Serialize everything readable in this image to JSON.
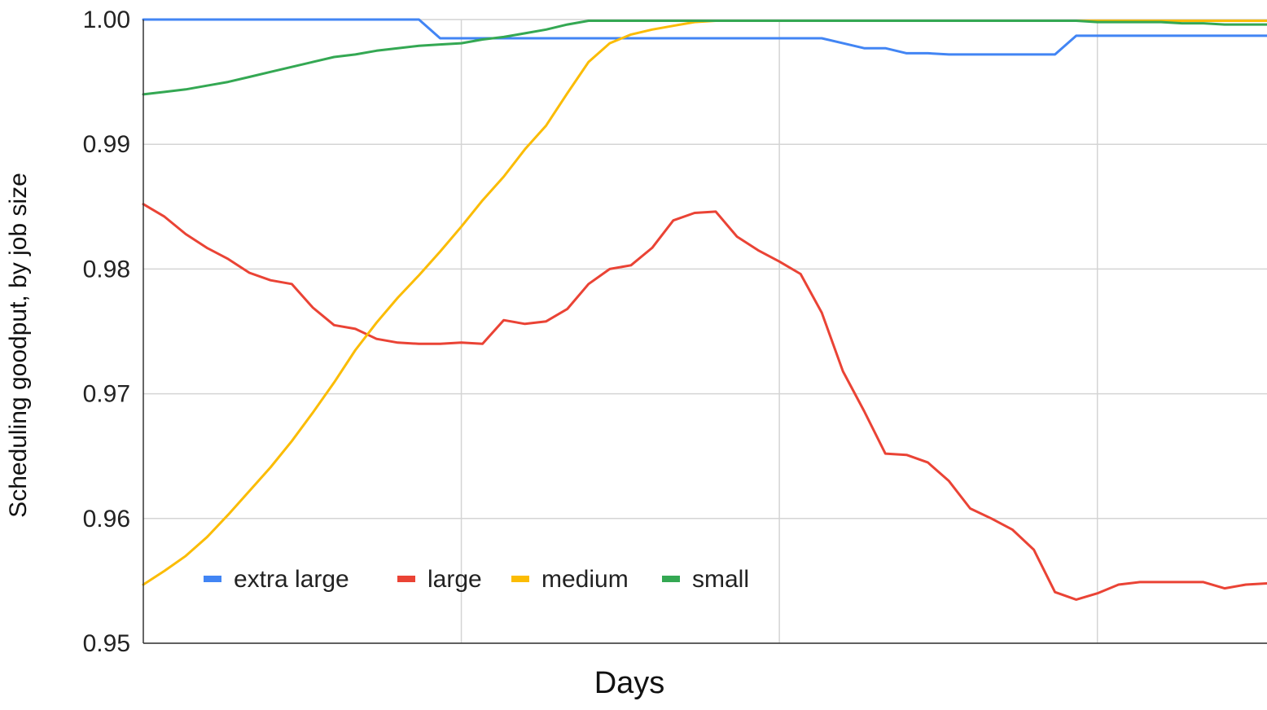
{
  "chart_data": {
    "type": "line",
    "title": "",
    "xlabel": "Days",
    "ylabel": "Scheduling goodput, by job size",
    "ylim": [
      0.95,
      1.0
    ],
    "yticks": [
      "0.95",
      "0.96",
      "0.97",
      "0.98",
      "0.99",
      "1.00"
    ],
    "x": [
      0,
      1,
      2,
      3,
      4,
      5,
      6,
      7,
      8,
      9,
      10,
      11,
      12,
      13,
      14,
      15,
      16,
      17,
      18,
      19,
      20,
      21,
      22,
      23,
      24,
      25,
      26,
      27,
      28,
      29,
      30,
      31,
      32,
      33,
      34,
      35,
      36,
      37,
      38,
      39,
      40,
      41,
      42,
      43,
      44,
      45,
      46,
      47,
      48,
      49,
      50,
      51,
      52,
      53
    ],
    "xlim": [
      0,
      53
    ],
    "x_gridlines": [
      15,
      30,
      45
    ],
    "legend_position": "bottom-left",
    "grid": true,
    "series": [
      {
        "name": "extra large",
        "color": "#4285f4",
        "values": [
          1.0,
          1.0,
          1.0,
          1.0,
          1.0,
          1.0,
          1.0,
          1.0,
          1.0,
          1.0,
          1.0,
          1.0,
          1.0,
          1.0,
          0.9985,
          0.9985,
          0.9985,
          0.9985,
          0.9985,
          0.9985,
          0.9985,
          0.9985,
          0.9985,
          0.9985,
          0.9985,
          0.9985,
          0.9985,
          0.9985,
          0.9985,
          0.9985,
          0.9985,
          0.9985,
          0.9985,
          0.9981,
          0.9977,
          0.9977,
          0.9973,
          0.9973,
          0.9972,
          0.9972,
          0.9972,
          0.9972,
          0.9972,
          0.9972,
          0.9987,
          0.9987,
          0.9987,
          0.9987,
          0.9987,
          0.9987,
          0.9987,
          0.9987,
          0.9987,
          0.9987
        ]
      },
      {
        "name": "large",
        "color": "#ea4335",
        "values": [
          0.9852,
          0.9842,
          0.9828,
          0.9817,
          0.9808,
          0.9797,
          0.9791,
          0.9788,
          0.9769,
          0.9755,
          0.9752,
          0.9744,
          0.9741,
          0.974,
          0.974,
          0.9741,
          0.974,
          0.9759,
          0.9756,
          0.9758,
          0.9768,
          0.9788,
          0.98,
          0.9803,
          0.9817,
          0.9839,
          0.9845,
          0.9846,
          0.9826,
          0.9815,
          0.9806,
          0.9796,
          0.9765,
          0.9718,
          0.9686,
          0.9652,
          0.9651,
          0.9645,
          0.963,
          0.9608,
          0.96,
          0.9591,
          0.9575,
          0.9541,
          0.9535,
          0.954,
          0.9547,
          0.9549,
          0.9549,
          0.9549,
          0.9549,
          0.9544,
          0.9547,
          0.9548
        ]
      },
      {
        "name": "medium",
        "color": "#fbbc04",
        "values": [
          0.9547,
          0.9558,
          0.957,
          0.9585,
          0.9603,
          0.9622,
          0.9641,
          0.9662,
          0.9685,
          0.9709,
          0.9735,
          0.9757,
          0.9777,
          0.9795,
          0.9814,
          0.9834,
          0.9855,
          0.9874,
          0.9896,
          0.9915,
          0.9941,
          0.9966,
          0.9981,
          0.9988,
          0.9992,
          0.9995,
          0.9998,
          0.9999,
          0.9999,
          0.9999,
          0.9999,
          0.9999,
          0.9999,
          0.9999,
          0.9999,
          0.9999,
          0.9999,
          0.9999,
          0.9999,
          0.9999,
          0.9999,
          0.9999,
          0.9999,
          0.9999,
          0.9999,
          0.9999,
          0.9999,
          0.9999,
          0.9999,
          0.9999,
          0.9999,
          0.9999,
          0.9999,
          0.9999
        ]
      },
      {
        "name": "small",
        "color": "#34a853",
        "values": [
          0.994,
          0.9942,
          0.9944,
          0.9947,
          0.995,
          0.9954,
          0.9958,
          0.9962,
          0.9966,
          0.997,
          0.9972,
          0.9975,
          0.9977,
          0.9979,
          0.998,
          0.9981,
          0.9984,
          0.9986,
          0.9989,
          0.9992,
          0.9996,
          0.9999,
          0.9999,
          0.9999,
          0.9999,
          0.9999,
          0.9999,
          0.9999,
          0.9999,
          0.9999,
          0.9999,
          0.9999,
          0.9999,
          0.9999,
          0.9999,
          0.9999,
          0.9999,
          0.9999,
          0.9999,
          0.9999,
          0.9999,
          0.9999,
          0.9999,
          0.9999,
          0.9999,
          0.9998,
          0.9998,
          0.9998,
          0.9998,
          0.9997,
          0.9997,
          0.9996,
          0.9996,
          0.9996
        ]
      }
    ]
  }
}
